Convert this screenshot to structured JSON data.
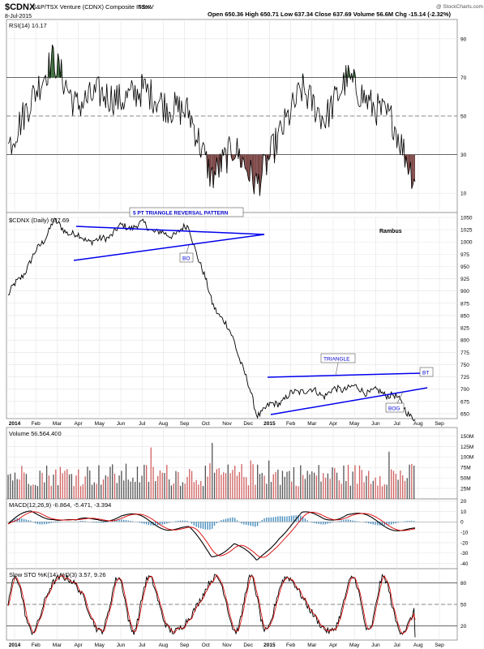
{
  "header": {
    "symbol": "$CDNX",
    "name": "S&P/TSX Venture (CDNX) Composite Index",
    "exchange": "TSXV",
    "date": "8-Jul-2015",
    "ohlc": "Open 650.36  High 650.71  Low 637.34  Close 637.69  Volume 56.6M  Chg -15.14 (-2.32%)",
    "copyright": "@ StockCharts.com"
  },
  "chart_data": [
    {
      "type": "line",
      "panel": "rsi",
      "title": "RSI(14) 16.17",
      "ylim": [
        0,
        100
      ],
      "yticks": [
        "90",
        "70",
        "50",
        "30",
        "10"
      ],
      "levels": [
        70,
        50,
        30
      ],
      "x": [
        "2014-01",
        "2014-02",
        "2014-03",
        "2014-04",
        "2014-05",
        "2014-06",
        "2014-07",
        "2014-08",
        "2014-09",
        "2014-10",
        "2014-11",
        "2014-12",
        "2015-01",
        "2015-02",
        "2015-03",
        "2015-04",
        "2015-05",
        "2015-06",
        "2015-07-08"
      ],
      "series": [
        {
          "values": [
            34,
            58,
            80,
            55,
            62,
            58,
            64,
            55,
            52,
            18,
            34,
            14,
            40,
            64,
            48,
            70,
            56,
            48,
            16
          ]
        }
      ]
    },
    {
      "type": "line",
      "panel": "price",
      "title": "$CDNX (Daily) 637.69",
      "ylim": [
        640,
        1050
      ],
      "yticks": [
        "1050",
        "1025",
        "1000",
        "975",
        "950",
        "925",
        "900",
        "875",
        "850",
        "825",
        "800",
        "775",
        "750",
        "725",
        "700",
        "675",
        "650"
      ],
      "x": [
        "2014-01",
        "2014-02",
        "2014-03",
        "2014-04",
        "2014-05",
        "2014-06",
        "2014-07",
        "2014-08",
        "2014-09",
        "2014-10",
        "2014-11",
        "2014-12",
        "2015-01",
        "2015-02",
        "2015-03",
        "2015-04",
        "2015-05",
        "2015-06",
        "2015-07-08"
      ],
      "series": [
        {
          "values": [
            890,
            960,
            1040,
            1012,
            1000,
            1030,
            1035,
            1012,
            1030,
            880,
            800,
            650,
            675,
            700,
            690,
            705,
            695,
            690,
            638
          ]
        }
      ],
      "annotations": [
        "5 PT TRIANGLE REVERSAL PATTERN",
        "BO",
        "TRIANGLE",
        "BT",
        "BOG",
        "Rambus"
      ]
    },
    {
      "type": "bar",
      "panel": "volume",
      "title": "Volume 56,564,400",
      "ylim": [
        0,
        170
      ],
      "yticks": [
        "150M",
        "125M",
        "100M",
        "75M",
        "50M",
        "25M"
      ]
    },
    {
      "type": "line",
      "panel": "macd",
      "title": "MACD(12,26,9) -8.864, -5.471, -3.394",
      "ylim": [
        -45,
        22
      ],
      "yticks": [
        "20",
        "10",
        "0",
        "-10",
        "-20",
        "-30",
        "-40"
      ]
    },
    {
      "type": "line",
      "panel": "sto",
      "title": "Slow STO %K(14) %D(3) 3.57, 9.26",
      "ylim": [
        0,
        100
      ],
      "yticks": [
        "80",
        "50",
        "20"
      ],
      "levels": [
        80,
        50,
        20
      ]
    }
  ],
  "x_axis": {
    "labels": [
      "2014",
      "Feb",
      "Mar",
      "Apr",
      "May",
      "Jun",
      "Jul",
      "Aug",
      "Sep",
      "Oct",
      "Nov",
      "Dec",
      "2015",
      "Feb",
      "Mar",
      "Apr",
      "May",
      "Jun",
      "Jul",
      "Aug",
      "Sep"
    ]
  },
  "colors": {
    "price": "#000000",
    "trend_lines": "#0000ee",
    "rsi_overbought_fill": "#3a6b3a",
    "rsi_oversold_fill": "#7a4444",
    "volume_up": "#555555",
    "volume_down": "#d06060",
    "macd_hist": "#4a8fbf",
    "signal": "#dd0000"
  }
}
